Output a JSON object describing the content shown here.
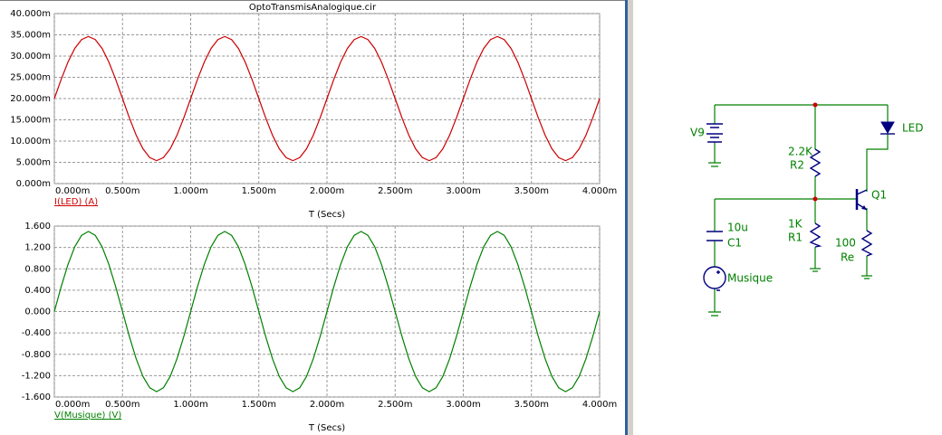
{
  "window": {
    "title": "OptoTransmisAnalogique.cir"
  },
  "chart_data": [
    {
      "type": "line",
      "x": [
        0,
        5e-05,
        0.0001,
        0.00015,
        0.0002,
        0.00025,
        0.0003,
        0.00035,
        0.0004,
        0.00045,
        0.0005,
        0.00055,
        0.0006,
        0.00065,
        0.0007,
        0.00075,
        0.0008,
        0.00085,
        0.0009,
        0.00095,
        0.001,
        0.00105,
        0.0011,
        0.00115,
        0.0012,
        0.00125,
        0.0013,
        0.00135,
        0.0014,
        0.00145,
        0.0015,
        0.00155,
        0.0016,
        0.00165,
        0.0017,
        0.00175,
        0.0018,
        0.00185,
        0.0019,
        0.00195,
        0.002,
        0.00205,
        0.0021,
        0.00215,
        0.0022,
        0.00225,
        0.0023,
        0.00235,
        0.0024,
        0.00245,
        0.0025,
        0.00255,
        0.0026,
        0.00265,
        0.0027,
        0.00275,
        0.0028,
        0.00285,
        0.0029,
        0.00295,
        0.003,
        0.00305,
        0.0031,
        0.00315,
        0.0032,
        0.00325,
        0.0033,
        0.00335,
        0.0034,
        0.00345,
        0.0035,
        0.00355,
        0.0036,
        0.00365,
        0.0037,
        0.00375,
        0.0038,
        0.00385,
        0.0039,
        0.00395,
        0.004
      ],
      "series": [
        {
          "name": "I(LED) (A)",
          "color": "#cc0000",
          "values": [
            0.02,
            0.02451,
            0.02858,
            0.03181,
            0.03388,
            0.0346,
            0.03388,
            0.03181,
            0.02858,
            0.02451,
            0.02,
            0.01549,
            0.01142,
            0.00819,
            0.00612,
            0.0054,
            0.00612,
            0.00819,
            0.01142,
            0.01549,
            0.02,
            0.02451,
            0.02858,
            0.03181,
            0.03388,
            0.0346,
            0.03388,
            0.03181,
            0.02858,
            0.02451,
            0.02,
            0.01549,
            0.01142,
            0.00819,
            0.00612,
            0.0054,
            0.00612,
            0.00819,
            0.01142,
            0.01549,
            0.02,
            0.02451,
            0.02858,
            0.03181,
            0.03388,
            0.0346,
            0.03388,
            0.03181,
            0.02858,
            0.02451,
            0.02,
            0.01549,
            0.01142,
            0.00819,
            0.00612,
            0.0054,
            0.00612,
            0.00819,
            0.01142,
            0.01549,
            0.02,
            0.02451,
            0.02858,
            0.03181,
            0.03388,
            0.0346,
            0.03388,
            0.03181,
            0.02858,
            0.02451,
            0.02,
            0.01549,
            0.01142,
            0.00819,
            0.00612,
            0.0054,
            0.00612,
            0.00819,
            0.01142,
            0.01549,
            0.02
          ]
        }
      ],
      "x_label": "T (Secs)",
      "xlim": [
        0,
        0.004
      ],
      "xticks": [
        {
          "value": 0,
          "label": "0.000m"
        },
        {
          "value": 0.0005,
          "label": "0.500m"
        },
        {
          "value": 0.001,
          "label": "1.000m"
        },
        {
          "value": 0.0015,
          "label": "1.500m"
        },
        {
          "value": 0.002,
          "label": "2.000m"
        },
        {
          "value": 0.0025,
          "label": "2.500m"
        },
        {
          "value": 0.003,
          "label": "3.000m"
        },
        {
          "value": 0.0035,
          "label": "3.500m"
        },
        {
          "value": 0.004,
          "label": "4.000m"
        }
      ],
      "ylim": [
        0,
        0.04
      ],
      "yticks": [
        {
          "value": 0,
          "label": "0.000m"
        },
        {
          "value": 0.005,
          "label": "5.000m"
        },
        {
          "value": 0.01,
          "label": "10.000m"
        },
        {
          "value": 0.015,
          "label": "15.000m"
        },
        {
          "value": 0.02,
          "label": "20.000m"
        },
        {
          "value": 0.025,
          "label": "25.000m"
        },
        {
          "value": 0.03,
          "label": "30.000m"
        },
        {
          "value": 0.035,
          "label": "35.000m"
        },
        {
          "value": 0.04,
          "label": "40.000m"
        }
      ],
      "grid": true
    },
    {
      "type": "line",
      "x": [
        0,
        5e-05,
        0.0001,
        0.00015,
        0.0002,
        0.00025,
        0.0003,
        0.00035,
        0.0004,
        0.00045,
        0.0005,
        0.00055,
        0.0006,
        0.00065,
        0.0007,
        0.00075,
        0.0008,
        0.00085,
        0.0009,
        0.00095,
        0.001,
        0.00105,
        0.0011,
        0.00115,
        0.0012,
        0.00125,
        0.0013,
        0.00135,
        0.0014,
        0.00145,
        0.0015,
        0.00155,
        0.0016,
        0.00165,
        0.0017,
        0.00175,
        0.0018,
        0.00185,
        0.0019,
        0.00195,
        0.002,
        0.00205,
        0.0021,
        0.00215,
        0.0022,
        0.00225,
        0.0023,
        0.00235,
        0.0024,
        0.00245,
        0.0025,
        0.00255,
        0.0026,
        0.00265,
        0.0027,
        0.00275,
        0.0028,
        0.00285,
        0.0029,
        0.00295,
        0.003,
        0.00305,
        0.0031,
        0.00315,
        0.0032,
        0.00325,
        0.0033,
        0.00335,
        0.0034,
        0.00345,
        0.0035,
        0.00355,
        0.0036,
        0.00365,
        0.0037,
        0.00375,
        0.0038,
        0.00385,
        0.0039,
        0.00395,
        0.004
      ],
      "series": [
        {
          "name": "V(Musique) (V)",
          "color": "#008000",
          "values": [
            0,
            0.464,
            0.882,
            1.214,
            1.427,
            1.5,
            1.427,
            1.214,
            0.882,
            0.464,
            0,
            -0.464,
            -0.882,
            -1.214,
            -1.427,
            -1.5,
            -1.427,
            -1.214,
            -0.882,
            -0.464,
            0,
            0.464,
            0.882,
            1.214,
            1.427,
            1.5,
            1.427,
            1.214,
            0.882,
            0.464,
            0,
            -0.464,
            -0.882,
            -1.214,
            -1.427,
            -1.5,
            -1.427,
            -1.214,
            -0.882,
            -0.464,
            0,
            0.464,
            0.882,
            1.214,
            1.427,
            1.5,
            1.427,
            1.214,
            0.882,
            0.464,
            0,
            -0.464,
            -0.882,
            -1.214,
            -1.427,
            -1.5,
            -1.427,
            -1.214,
            -0.882,
            -0.464,
            0,
            0.464,
            0.882,
            1.214,
            1.427,
            1.5,
            1.427,
            1.214,
            0.882,
            0.464,
            0,
            -0.464,
            -0.882,
            -1.214,
            -1.427,
            -1.5,
            -1.427,
            -1.214,
            -0.882,
            -0.464,
            0
          ]
        }
      ],
      "x_label": "T (Secs)",
      "xlim": [
        0,
        0.004
      ],
      "xticks": [
        {
          "value": 0,
          "label": "0.000m"
        },
        {
          "value": 0.0005,
          "label": "0.500m"
        },
        {
          "value": 0.001,
          "label": "1.000m"
        },
        {
          "value": 0.0015,
          "label": "1.500m"
        },
        {
          "value": 0.002,
          "label": "2.000m"
        },
        {
          "value": 0.0025,
          "label": "2.500m"
        },
        {
          "value": 0.003,
          "label": "3.000m"
        },
        {
          "value": 0.0035,
          "label": "3.500m"
        },
        {
          "value": 0.004,
          "label": "4.000m"
        }
      ],
      "ylim": [
        -1.6,
        1.6
      ],
      "yticks": [
        {
          "value": -1.6,
          "label": "-1.600"
        },
        {
          "value": -1.2,
          "label": "-1.200"
        },
        {
          "value": -0.8,
          "label": "-0.800"
        },
        {
          "value": -0.4,
          "label": "-0.400"
        },
        {
          "value": 0,
          "label": "0.000"
        },
        {
          "value": 0.4,
          "label": "0.400"
        },
        {
          "value": 0.8,
          "label": "0.800"
        },
        {
          "value": 1.2,
          "label": "1.200"
        },
        {
          "value": 1.6,
          "label": "1.600"
        }
      ],
      "grid": true
    }
  ],
  "schematic": {
    "labels": [
      "V9",
      "2.2K",
      "R2",
      "LED",
      "Q1",
      "10u",
      "C1",
      "1K",
      "R1",
      "100",
      "Re",
      "Musique"
    ]
  }
}
